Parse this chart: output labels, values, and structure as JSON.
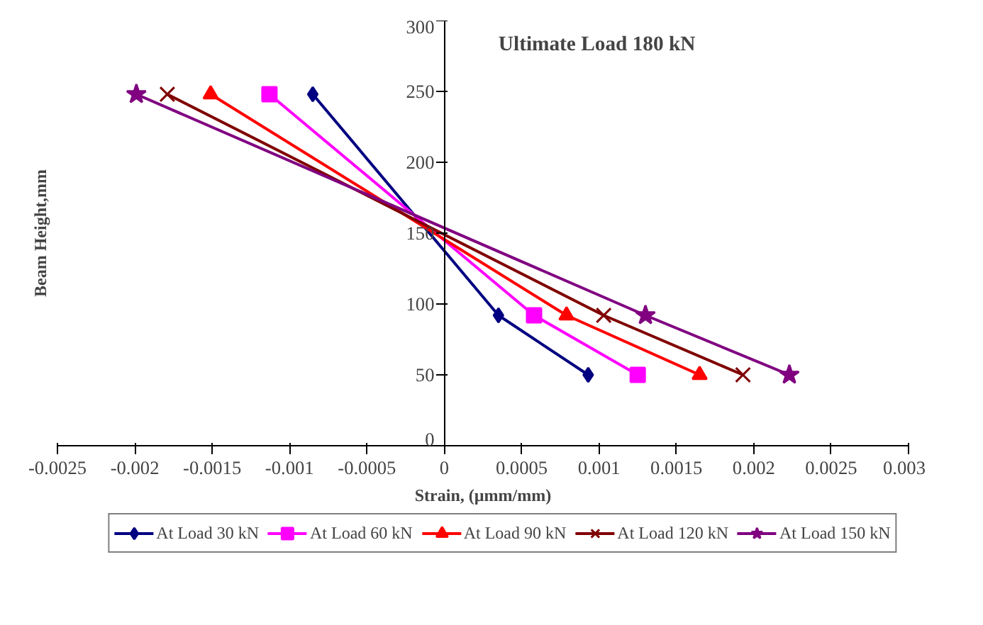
{
  "chart_data": {
    "type": "line",
    "title": "Ultimate Load 180 kN",
    "xlabel": "Strain, (µmm/mm)",
    "ylabel": "Beam Height,mm",
    "xlim": [
      -0.0025,
      0.003
    ],
    "xticks": [
      -0.0025,
      -0.002,
      -0.0015,
      -0.001,
      -0.0005,
      0,
      0.0005,
      0.001,
      0.0015,
      0.002,
      0.0025,
      0.003
    ],
    "ylim": [
      0,
      300
    ],
    "yticks": [
      0,
      50,
      100,
      150,
      200,
      250,
      300
    ],
    "grid": false,
    "legend": "bottom",
    "line_style": "solid",
    "series": [
      {
        "name": "At Load 30 kN",
        "color": "#000080",
        "marker": "diamond",
        "x": [
          -0.00085,
          0.00035,
          0.00093
        ],
        "values": [
          248,
          92,
          50
        ]
      },
      {
        "name": "At Load 60 kN",
        "color": "#ff00ff",
        "marker": "square",
        "x": [
          -0.00113,
          0.00058,
          0.00125
        ],
        "values": [
          248,
          92,
          50
        ]
      },
      {
        "name": "At Load 90 kN",
        "color": "#ff0000",
        "marker": "triangle",
        "x": [
          -0.00151,
          0.00079,
          0.00165
        ],
        "values": [
          248,
          92,
          50
        ]
      },
      {
        "name": "At Load 120 kN",
        "color": "#800000",
        "marker": "cross",
        "x": [
          -0.00179,
          0.00103,
          0.00193
        ],
        "values": [
          248,
          92,
          50
        ]
      },
      {
        "name": "At Load 150 kN",
        "color": "#800080",
        "marker": "star",
        "x": [
          -0.00199,
          0.0013,
          0.00223
        ],
        "values": [
          248,
          92,
          50
        ]
      }
    ]
  }
}
